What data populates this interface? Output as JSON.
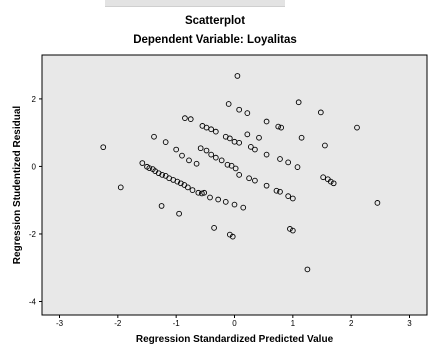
{
  "chart_data": {
    "type": "scatter",
    "title": "Scatterplot",
    "subtitle": "Dependent Variable: Loyalitas",
    "xlabel": "Regression Standardized Predicted Value",
    "ylabel": "Regression Studentized Residual",
    "xlim": [
      -3.3,
      3.3
    ],
    "ylim": [
      -4.4,
      3.3
    ],
    "xticks": [
      "-3",
      "-2",
      "-1",
      "0",
      "1",
      "2",
      "3"
    ],
    "yticks": [
      "-4",
      "-2",
      "0",
      "2"
    ],
    "grid": false,
    "plot_background": "#e8e8e8",
    "marker_color": "#000000",
    "points": [
      [
        -2.25,
        0.57
      ],
      [
        -1.95,
        -0.62
      ],
      [
        -1.58,
        0.1
      ],
      [
        -1.5,
        -0.01
      ],
      [
        -1.46,
        -0.05
      ],
      [
        -1.4,
        -0.08
      ],
      [
        -1.36,
        -0.14
      ],
      [
        -1.3,
        -0.2
      ],
      [
        -1.24,
        -0.25
      ],
      [
        -1.18,
        -0.28
      ],
      [
        -1.12,
        -0.35
      ],
      [
        -1.05,
        -0.4
      ],
      [
        -0.98,
        -0.45
      ],
      [
        -0.92,
        -0.5
      ],
      [
        -0.86,
        -0.55
      ],
      [
        -0.8,
        -0.62
      ],
      [
        -0.72,
        -0.7
      ],
      [
        -0.62,
        -0.78
      ],
      [
        -0.56,
        -0.8
      ],
      [
        -1.38,
        0.88
      ],
      [
        -1.18,
        0.72
      ],
      [
        -1.0,
        0.5
      ],
      [
        -0.9,
        0.32
      ],
      [
        -0.78,
        0.18
      ],
      [
        -0.65,
        0.08
      ],
      [
        -1.25,
        -1.17
      ],
      [
        -0.95,
        -1.4
      ],
      [
        -0.85,
        1.43
      ],
      [
        -0.75,
        1.4
      ],
      [
        -0.55,
        1.2
      ],
      [
        -0.48,
        1.15
      ],
      [
        -0.4,
        1.1
      ],
      [
        -0.32,
        1.03
      ],
      [
        -0.15,
        0.88
      ],
      [
        -0.08,
        0.83
      ],
      [
        0.0,
        0.73
      ],
      [
        -0.58,
        0.54
      ],
      [
        -0.48,
        0.47
      ],
      [
        -0.4,
        0.35
      ],
      [
        -0.32,
        0.26
      ],
      [
        -0.22,
        0.18
      ],
      [
        -0.12,
        0.05
      ],
      [
        -0.05,
        0.02
      ],
      [
        0.02,
        -0.06
      ],
      [
        -0.52,
        -0.78
      ],
      [
        -0.42,
        -0.92
      ],
      [
        -0.28,
        -0.98
      ],
      [
        -0.15,
        -1.05
      ],
      [
        0.0,
        -1.13
      ],
      [
        0.15,
        -1.22
      ],
      [
        -0.35,
        -1.82
      ],
      [
        -0.08,
        -2.02
      ],
      [
        -0.03,
        -2.08
      ],
      [
        -0.1,
        1.85
      ],
      [
        0.08,
        1.68
      ],
      [
        0.22,
        1.58
      ],
      [
        0.05,
        2.68
      ],
      [
        0.55,
        1.33
      ],
      [
        0.75,
        1.18
      ],
      [
        0.8,
        1.15
      ],
      [
        0.22,
        0.95
      ],
      [
        0.42,
        0.85
      ],
      [
        0.08,
        0.7
      ],
      [
        0.28,
        0.58
      ],
      [
        0.35,
        0.5
      ],
      [
        0.55,
        0.35
      ],
      [
        0.08,
        -0.25
      ],
      [
        0.25,
        -0.35
      ],
      [
        0.35,
        -0.42
      ],
      [
        0.55,
        -0.57
      ],
      [
        0.72,
        -0.72
      ],
      [
        0.78,
        -0.75
      ],
      [
        0.92,
        -0.88
      ],
      [
        1.0,
        -0.95
      ],
      [
        0.78,
        0.22
      ],
      [
        0.92,
        0.12
      ],
      [
        1.08,
        -0.02
      ],
      [
        1.1,
        1.9
      ],
      [
        1.15,
        0.85
      ],
      [
        1.48,
        1.6
      ],
      [
        1.55,
        0.62
      ],
      [
        1.6,
        -0.38
      ],
      [
        1.52,
        -0.32
      ],
      [
        1.65,
        -0.45
      ],
      [
        1.7,
        -0.5
      ],
      [
        2.1,
        1.15
      ],
      [
        2.45,
        -1.08
      ],
      [
        0.95,
        -1.85
      ],
      [
        1.0,
        -1.9
      ],
      [
        1.25,
        -3.05
      ]
    ]
  }
}
